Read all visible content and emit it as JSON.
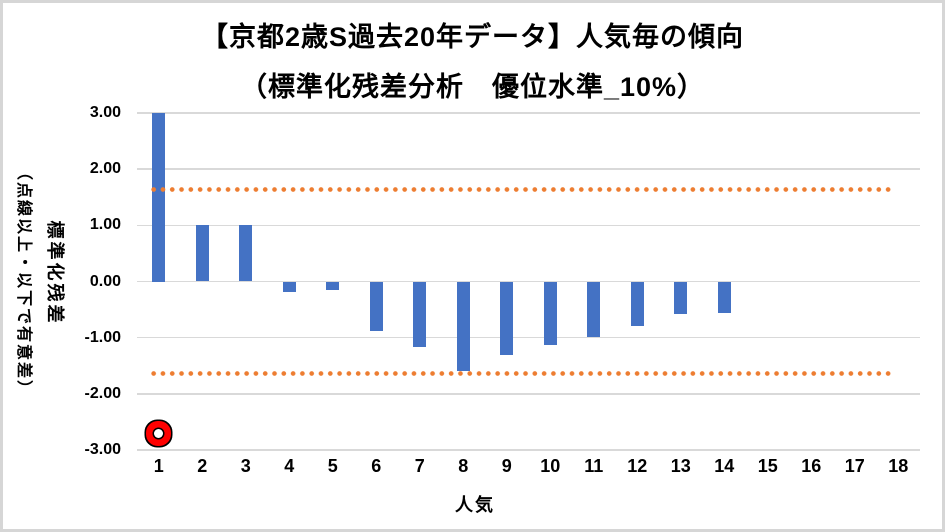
{
  "chart_data": {
    "type": "bar",
    "title": "【京都2歳S過去20年データ】人気毎の傾向",
    "subtitle": "（標準化残差分析　優位水準_10%）",
    "xlabel": "人気",
    "ylabel": "標準化残差",
    "ylabel_note": "（点線以上・以下で有意差）",
    "categories": [
      "1",
      "2",
      "3",
      "4",
      "5",
      "6",
      "7",
      "8",
      "9",
      "10",
      "11",
      "12",
      "13",
      "14",
      "15",
      "16",
      "17",
      "18"
    ],
    "values": [
      3.0,
      1.0,
      1.0,
      -0.18,
      -0.16,
      -0.88,
      -1.17,
      -1.59,
      -1.3,
      -1.13,
      -0.98,
      -0.79,
      -0.57,
      -0.56,
      0,
      0,
      0,
      0
    ],
    "series_name": "標準化残差",
    "ylim": [
      -3,
      3
    ],
    "ytick_labels": [
      "3.00",
      "2.00",
      "1.00",
      "0.00",
      "-1.00",
      "-2.00",
      "-3.00"
    ],
    "threshold_upper": 1.645,
    "threshold_lower": -1.645,
    "highlight_marker": {
      "category": "1",
      "value": -2.7,
      "shape": "red-ring-circle"
    },
    "grid": true,
    "legend": false,
    "colors": {
      "bar": "#4472C4",
      "threshold_dotted": "#ED7D31",
      "gridline": "#D9D9D9",
      "marker_ring": "#FF0000",
      "marker_outline": "#000000",
      "text": "#000000",
      "frame_border": "#D6D6D6"
    }
  }
}
